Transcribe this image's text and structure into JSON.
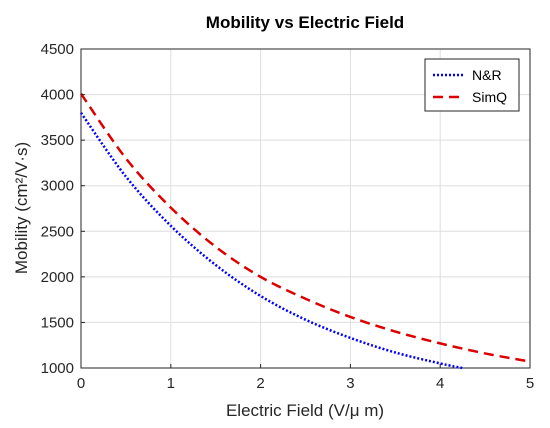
{
  "chart_data": {
    "type": "line",
    "title": "Mobility vs Electric Field",
    "xlabel": "Electric Field (V/μ m)",
    "ylabel": "Mobility (cm²/V·s)",
    "xlim": [
      0,
      5
    ],
    "ylim": [
      1000,
      4500
    ],
    "xticks": [
      0,
      1,
      2,
      3,
      4,
      5
    ],
    "yticks": [
      1000,
      1500,
      2000,
      2500,
      3000,
      3500,
      4000,
      4500
    ],
    "grid": true,
    "legend_position": "top-right",
    "series": [
      {
        "name": "N&R",
        "color": "#0000ff",
        "style": "dotted",
        "x": [
          0,
          0.5,
          1,
          1.5,
          2,
          2.5,
          3,
          3.5,
          4,
          4.25
        ],
        "y": [
          3800,
          3100,
          2560,
          2130,
          1790,
          1530,
          1330,
          1170,
          1050,
          1000
        ]
      },
      {
        "name": "SimQ",
        "color": "#dd0000",
        "style": "dashed",
        "x": [
          0,
          0.5,
          1,
          1.5,
          2,
          2.5,
          3,
          3.5,
          4,
          4.5,
          5
        ],
        "y": [
          4010,
          3300,
          2760,
          2330,
          2000,
          1760,
          1560,
          1400,
          1270,
          1160,
          1070
        ]
      }
    ]
  }
}
